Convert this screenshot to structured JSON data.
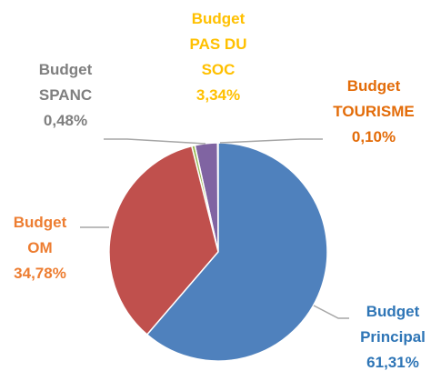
{
  "chart_data": {
    "type": "pie",
    "categories": [
      "Budget Principal",
      "Budget OM",
      "Budget SPANC",
      "Budget PAS DU SOC",
      "Budget TOURISME"
    ],
    "values": [
      61.31,
      34.78,
      0.48,
      3.34,
      0.1
    ],
    "value_labels": [
      "61,31%",
      "34,78%",
      "0,48%",
      "3,34%",
      "0,10%"
    ],
    "colors": [
      "#4f81bd",
      "#c0504d",
      "#9bbb59",
      "#8064a2",
      "#f79646"
    ],
    "label_colors": [
      "#2e75b6",
      "#ed7d31",
      "#7f7f7f",
      "#ffc000",
      "#e36c09"
    ]
  }
}
